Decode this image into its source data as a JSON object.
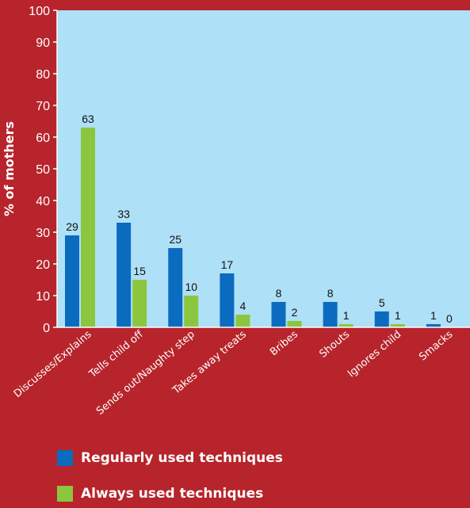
{
  "colors": {
    "background": "#b7242b",
    "plot_area": "#aee0f7",
    "regular": "#0b6cbf",
    "always": "#8cc63f"
  },
  "chart_data": {
    "type": "bar",
    "ylabel": "% of mothers",
    "ylim": [
      0,
      100
    ],
    "yticks": [
      0,
      10,
      20,
      30,
      40,
      50,
      60,
      70,
      80,
      90,
      100
    ],
    "categories": [
      "Discusses/Explains",
      "Tells child off",
      "Sends out/Naughty step",
      "Takes away treats",
      "Bribes",
      "Shouts",
      "Ignores child",
      "Smacks"
    ],
    "series": [
      {
        "name": "Regularly used techniques",
        "values": [
          29,
          33,
          25,
          17,
          8,
          8,
          5,
          1
        ],
        "color": "#0b6cbf"
      },
      {
        "name": "Always used techniques",
        "values": [
          63,
          15,
          10,
          4,
          2,
          1,
          1,
          0
        ],
        "color": "#8cc63f"
      }
    ],
    "grid": false,
    "legend_position": "bottom"
  }
}
